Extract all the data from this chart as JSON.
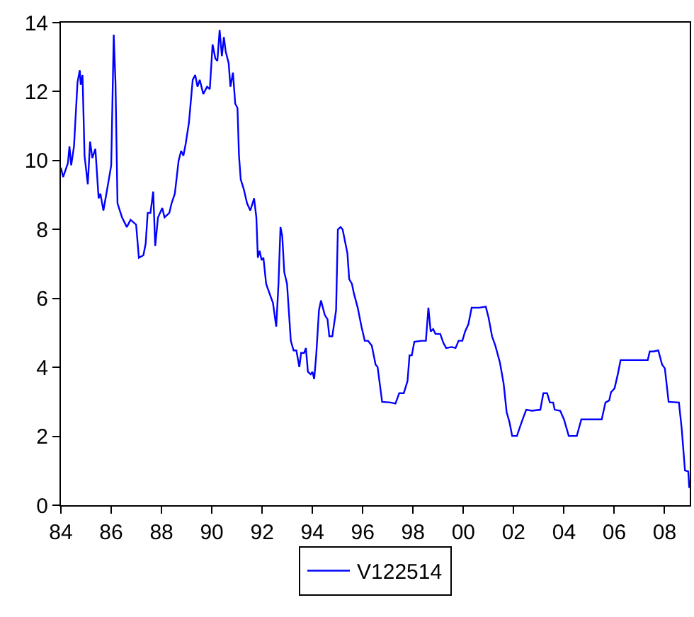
{
  "chart_data": {
    "type": "line",
    "x": [
      1984.0,
      1984.09,
      1984.28,
      1984.34,
      1984.41,
      1984.52,
      1984.66,
      1984.75,
      1984.79,
      1984.86,
      1984.94,
      1985.07,
      1985.16,
      1985.25,
      1985.37,
      1985.5,
      1985.57,
      1985.69,
      1985.84,
      1986.0,
      1986.02,
      1986.1,
      1986.17,
      1986.25,
      1986.43,
      1986.62,
      1986.77,
      1986.99,
      1987.1,
      1987.28,
      1987.37,
      1987.45,
      1987.56,
      1987.67,
      1987.75,
      1987.86,
      1988.03,
      1988.12,
      1988.31,
      1988.4,
      1988.53,
      1988.68,
      1988.78,
      1988.87,
      1988.96,
      1989.09,
      1989.24,
      1989.34,
      1989.43,
      1989.52,
      1989.66,
      1989.81,
      1989.92,
      1990.03,
      1990.14,
      1990.22,
      1990.31,
      1990.4,
      1990.48,
      1990.55,
      1990.67,
      1990.74,
      1990.84,
      1990.93,
      1991.02,
      1991.08,
      1991.15,
      1991.27,
      1991.4,
      1991.53,
      1991.68,
      1991.77,
      1991.83,
      1991.9,
      1991.98,
      1992.05,
      1992.16,
      1992.33,
      1992.43,
      1992.56,
      1992.65,
      1992.73,
      1992.8,
      1992.88,
      1992.99,
      1993.14,
      1993.25,
      1993.36,
      1993.48,
      1993.55,
      1993.67,
      1993.74,
      1993.82,
      1993.93,
      1994.0,
      1994.07,
      1994.15,
      1994.26,
      1994.34,
      1994.49,
      1994.6,
      1994.67,
      1994.79,
      1994.9,
      1994.94,
      1995.01,
      1995.12,
      1995.2,
      1995.39,
      1995.46,
      1995.57,
      1995.65,
      1995.8,
      1995.95,
      1996.08,
      1996.21,
      1996.36,
      1996.51,
      1996.59,
      1996.77,
      1997.11,
      1997.3,
      1997.45,
      1997.63,
      1997.78,
      1997.86,
      1997.95,
      1998.05,
      1998.33,
      1998.51,
      1998.61,
      1998.7,
      1998.8,
      1998.89,
      1999.08,
      1999.21,
      1999.32,
      1999.54,
      1999.69,
      1999.81,
      1999.96,
      2000.07,
      2000.2,
      2000.33,
      2000.63,
      2000.89,
      2001.0,
      2001.14,
      2001.27,
      2001.45,
      2001.6,
      2001.72,
      2001.83,
      2001.94,
      2002.13,
      2002.26,
      2002.39,
      2002.5,
      2002.73,
      2003.06,
      2003.18,
      2003.33,
      2003.44,
      2003.57,
      2003.63,
      2003.85,
      2004.0,
      2004.19,
      2004.51,
      2004.69,
      2004.98,
      2005.5,
      2005.65,
      2005.8,
      2005.87,
      2006.01,
      2006.14,
      2006.25,
      2006.66,
      2007.33,
      2007.41,
      2007.56,
      2007.75,
      2007.9,
      2008.01,
      2008.16,
      2008.57,
      2008.68,
      2008.81,
      2008.94,
      2008.98
    ],
    "series": [
      {
        "name": "V122514",
        "color": "#0000ff",
        "values": [
          9.79,
          9.52,
          9.93,
          10.41,
          9.86,
          10.41,
          12.27,
          12.62,
          12.2,
          12.48,
          10.14,
          9.31,
          10.55,
          10.07,
          10.34,
          8.9,
          9.04,
          8.55,
          9.17,
          9.86,
          10.62,
          13.65,
          12.27,
          8.76,
          8.35,
          8.07,
          8.28,
          8.14,
          7.18,
          7.25,
          7.59,
          8.48,
          8.48,
          9.1,
          7.52,
          8.35,
          8.62,
          8.35,
          8.48,
          8.76,
          9.04,
          10.0,
          10.28,
          10.14,
          10.48,
          11.1,
          12.34,
          12.48,
          12.14,
          12.34,
          11.93,
          12.14,
          12.07,
          13.37,
          12.96,
          12.89,
          13.79,
          13.03,
          13.58,
          13.17,
          12.82,
          12.14,
          12.55,
          11.65,
          11.52,
          10.14,
          9.45,
          9.17,
          8.76,
          8.55,
          8.9,
          8.35,
          7.18,
          7.38,
          7.11,
          7.18,
          6.42,
          6.07,
          5.87,
          5.18,
          6.42,
          8.07,
          7.8,
          6.76,
          6.42,
          4.77,
          4.49,
          4.49,
          4.01,
          4.42,
          4.42,
          4.56,
          3.87,
          3.8,
          3.87,
          3.66,
          4.35,
          5.66,
          5.94,
          5.52,
          5.39,
          4.9,
          4.9,
          5.45,
          5.66,
          8.0,
          8.07,
          8.0,
          7.31,
          6.56,
          6.42,
          6.14,
          5.73,
          5.18,
          4.77,
          4.77,
          4.63,
          4.08,
          4.01,
          3.0,
          2.98,
          2.95,
          3.25,
          3.25,
          3.6,
          4.35,
          4.35,
          4.74,
          4.77,
          4.77,
          5.73,
          5.04,
          5.11,
          4.97,
          4.97,
          4.7,
          4.56,
          4.59,
          4.56,
          4.77,
          4.77,
          5.04,
          5.25,
          5.73,
          5.73,
          5.76,
          5.45,
          4.9,
          4.63,
          4.15,
          3.53,
          2.7,
          2.42,
          2.01,
          2.01,
          2.29,
          2.56,
          2.77,
          2.74,
          2.77,
          3.25,
          3.25,
          2.98,
          2.98,
          2.77,
          2.74,
          2.49,
          2.01,
          2.01,
          2.49,
          2.49,
          2.49,
          2.98,
          3.04,
          3.28,
          3.39,
          3.8,
          4.21,
          4.21,
          4.21,
          4.46,
          4.46,
          4.49,
          4.08,
          3.97,
          3.0,
          2.98,
          2.22,
          1.01,
          0.98,
          0.5
        ]
      }
    ],
    "xlim": [
      1984,
      2009
    ],
    "xticks": [
      {
        "value": 1984,
        "label": "84"
      },
      {
        "value": 1986,
        "label": "86"
      },
      {
        "value": 1988,
        "label": "88"
      },
      {
        "value": 1990,
        "label": "90"
      },
      {
        "value": 1992,
        "label": "92"
      },
      {
        "value": 1994,
        "label": "94"
      },
      {
        "value": 1996,
        "label": "96"
      },
      {
        "value": 1998,
        "label": "98"
      },
      {
        "value": 2000,
        "label": "00"
      },
      {
        "value": 2002,
        "label": "02"
      },
      {
        "value": 2004,
        "label": "04"
      },
      {
        "value": 2006,
        "label": "06"
      },
      {
        "value": 2008,
        "label": "08"
      }
    ],
    "ylim": [
      0,
      14
    ],
    "yticks": [
      0,
      2,
      4,
      6,
      8,
      10,
      12,
      14
    ],
    "legend": "bottom",
    "marker": "none",
    "line_style": "solid"
  }
}
